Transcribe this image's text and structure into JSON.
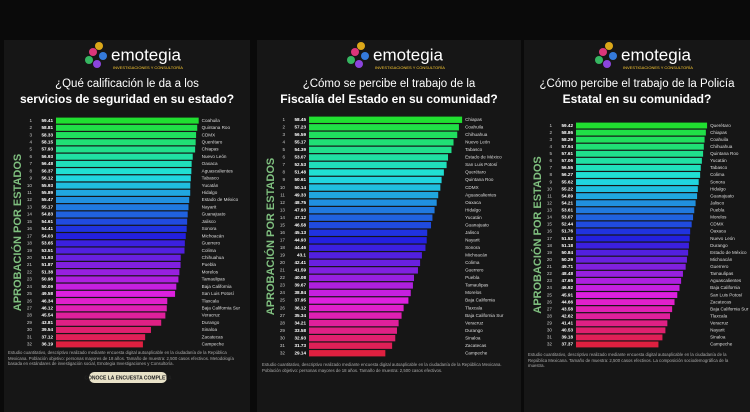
{
  "chart_data": [
    {
      "type": "bar",
      "logo": "emotegia",
      "logo_subtitle": "INVESTIGACIONES Y CONSULTORÍA",
      "title": "¿Qué calificación le da a los",
      "subtitle": "servicios de seguridad en su estado?",
      "ylabel": "APROBACIÓN POR ESTADOS",
      "ranks": [
        1,
        2,
        3,
        4,
        5,
        6,
        7,
        8,
        9,
        10,
        11,
        12,
        13,
        14,
        15,
        16,
        17,
        18,
        19,
        20,
        21,
        22,
        23,
        24,
        25,
        26,
        27,
        28,
        29,
        30,
        31,
        32
      ],
      "categories": [
        "Coahuila",
        "Quintana Roo",
        "CDMX",
        "Querétaro",
        "Chiapas",
        "Nuevo León",
        "Oaxaca",
        "Aguascalientes",
        "Tabasco",
        "Yucatán",
        "Hidalgo",
        "Estado de México",
        "Nayarit",
        "Guanajuato",
        "Jalisco",
        "Sonora",
        "Michoacán",
        "Guerrero",
        "Colima",
        "Chihuahua",
        "Puebla",
        "Morelos",
        "Tamaulipas",
        "Baja California",
        "San Luis Potosí",
        "Tlaxcala",
        "Baja California Sur",
        "Veracruz",
        "Durango",
        "Sinaloa",
        "Zacatecas",
        "Campeche"
      ],
      "values": [
        59.41,
        58.81,
        58.33,
        58.15,
        57.93,
        56.93,
        56.48,
        56.37,
        56.12,
        55.93,
        55.89,
        55.47,
        55.17,
        54.83,
        54.61,
        54.41,
        54.03,
        53.65,
        53.51,
        51.93,
        51.87,
        51.38,
        50.98,
        50.09,
        49.58,
        46.34,
        46.12,
        45.54,
        43.81,
        39.54,
        37.12,
        36.19
      ],
      "footnote": "Estudio cuantitativo, descriptivo realizado mediante encuesta digital autoaplicable en la ciudadanía de la República Mexicana. Población objetivo: personas mayores de 18 años. Tamaño de muestra: 2,500 casos efectivos. Metodología basada en estándares de investigación social, Emotegia Investigaciones y Consultoría.",
      "button": "CONOCE LA ENCUESTA COMPLETA"
    },
    {
      "type": "bar",
      "logo": "emotegia",
      "logo_subtitle": "INVESTIGACIONES Y CONSULTORÍA",
      "title": "¿Cómo se percibe el trabajo de la",
      "subtitle": "Fiscalía del Estado en su comunidad?",
      "ylabel": "APROBACIÓN POR ESTADOS",
      "ranks": [
        1,
        2,
        3,
        4,
        5,
        6,
        7,
        8,
        9,
        10,
        11,
        12,
        13,
        14,
        15,
        16,
        17,
        18,
        19,
        20,
        21,
        22,
        23,
        24,
        25,
        26,
        27,
        28,
        29,
        30,
        31,
        32
      ],
      "categories": [
        "Chiapas",
        "Coahuila",
        "Chihuahua",
        "Nuevo León",
        "Tabasco",
        "Estado de México",
        "San Luis Potosí",
        "Querétaro",
        "Quintana Roo",
        "CDMX",
        "Aguascalientes",
        "Oaxaca",
        "Hidalgo",
        "Yucatán",
        "Guanajuato",
        "Jalisco",
        "Nayarit",
        "Sonora",
        "Michoacán",
        "Colima",
        "Guerrero",
        "Puebla",
        "Tamaulipas",
        "Morelos",
        "Baja California",
        "Tlaxcala",
        "Baja California Sur",
        "Veracruz",
        "Durango",
        "Sinaloa",
        "Zacatecas",
        "Campeche"
      ],
      "values": [
        58.45,
        57.23,
        56.59,
        55.17,
        54.39,
        53.07,
        52.53,
        51.48,
        50.61,
        50.14,
        49.33,
        48.75,
        47.93,
        47.12,
        46.58,
        45.13,
        44.93,
        44.46,
        43.1,
        42.41,
        41.59,
        40.08,
        39.67,
        38.84,
        37.95,
        36.12,
        35.34,
        34.21,
        33.58,
        32.93,
        31.73,
        29.14
      ],
      "footnote": "Estudio cuantitativo, descriptivo realizado mediante encuesta digital autoaplicable en la ciudadanía de la República Mexicana. Población objetivo: personas mayores de 18 años. Tamaño de muestra: 2,500 casos efectivos."
    },
    {
      "type": "bar",
      "logo": "emotegia",
      "logo_subtitle": "INVESTIGACIONES Y CONSULTORÍA",
      "title": "¿Cómo percibe el trabajo de la Policía",
      "subtitle": "Estatal en su comunidad?",
      "ylabel": "APROBACIÓN POR ESTADOS",
      "ranks": [
        1,
        2,
        3,
        4,
        5,
        6,
        7,
        8,
        9,
        10,
        11,
        12,
        13,
        14,
        15,
        16,
        17,
        18,
        19,
        20,
        21,
        22,
        23,
        24,
        25,
        26,
        27,
        28,
        29,
        30,
        31,
        32
      ],
      "categories": [
        "Querétaro",
        "Chiapas",
        "Coahuila",
        "Chihuahua",
        "Quintana Roo",
        "Yucatán",
        "Tabasco",
        "Colima",
        "Sonora",
        "Hidalgo",
        "Guanajuato",
        "Jalisco",
        "Puebla",
        "Morelos",
        "CDMX",
        "Oaxaca",
        "Nuevo León",
        "Durango",
        "Estado de México",
        "Michoacán",
        "Guerrero",
        "Tamaulipas",
        "Aguascalientes",
        "Baja California",
        "San Luis Potosí",
        "Zacatecas",
        "Baja California Sur",
        "Tlaxcala",
        "Veracruz",
        "Nayarit",
        "Sinaloa",
        "Campeche"
      ],
      "values": [
        59.42,
        58.86,
        58.29,
        57.94,
        57.61,
        57.06,
        56.55,
        56.27,
        55.62,
        55.22,
        54.89,
        54.21,
        53.61,
        53.07,
        52.44,
        51.76,
        51.52,
        51.18,
        50.84,
        50.29,
        49.71,
        48.48,
        47.65,
        46.92,
        45.91,
        44.66,
        43.58,
        42.62,
        41.41,
        40.53,
        39.18,
        37.37
      ],
      "footnote": "Estudio cuantitativo, descriptivo realizado mediante encuesta digital autoaplicable en la ciudadanía de la República Mexicana. Tamaño de muestra: 2,500 casos efectivos. La composición sociodemográfica de la muestra."
    }
  ]
}
